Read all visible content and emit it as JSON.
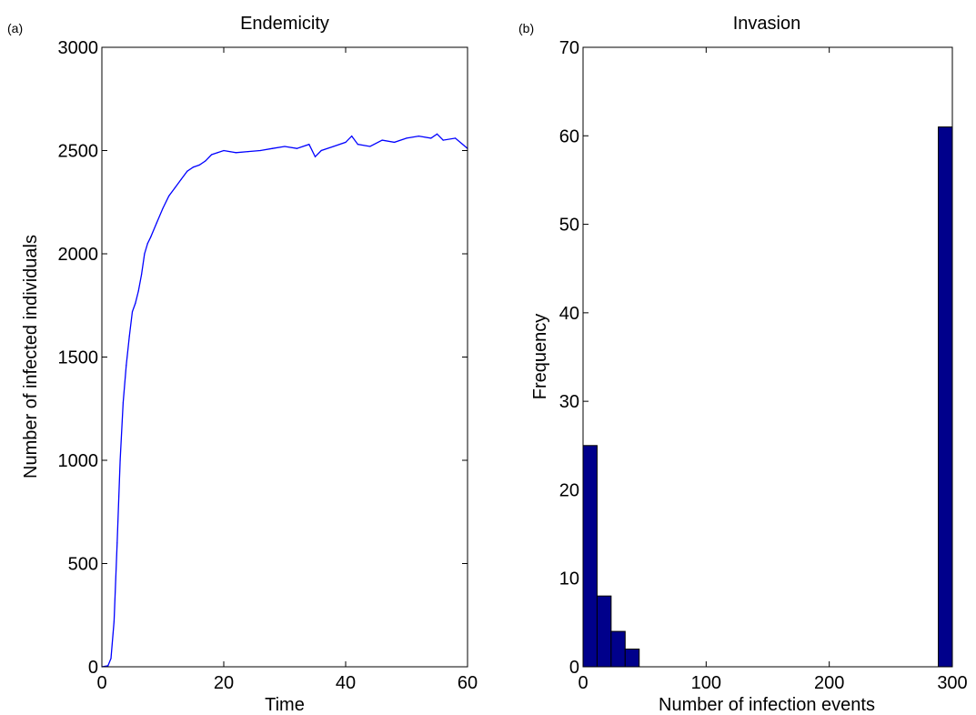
{
  "chart_data": [
    {
      "type": "line",
      "panel_label": "(a)",
      "title": "Endemicity",
      "xlabel": "Time",
      "ylabel": "Number of infected individuals",
      "xlim": [
        0,
        60
      ],
      "ylim": [
        0,
        3000
      ],
      "xticks": [
        "0",
        "20",
        "40",
        "60"
      ],
      "yticks": [
        "0",
        "500",
        "1000",
        "1500",
        "2000",
        "2500",
        "3000"
      ],
      "grid": false,
      "line_color": "#0000ff",
      "series": [
        {
          "x": [
            0,
            1,
            1.5,
            2,
            2.5,
            3,
            3.5,
            4,
            4.5,
            5,
            5.5,
            6,
            6.5,
            7,
            7.5,
            8,
            9,
            10,
            11,
            12,
            13,
            14,
            15,
            16,
            17,
            18,
            19,
            20,
            22,
            24,
            26,
            28,
            30,
            32,
            34,
            35,
            36,
            38,
            40,
            41,
            42,
            44,
            46,
            48,
            50,
            52,
            54,
            55,
            56,
            58,
            60
          ],
          "y": [
            0,
            5,
            40,
            220,
            600,
            1000,
            1280,
            1460,
            1600,
            1720,
            1760,
            1820,
            1900,
            2000,
            2050,
            2080,
            2150,
            2220,
            2280,
            2320,
            2360,
            2400,
            2420,
            2430,
            2450,
            2480,
            2490,
            2500,
            2490,
            2495,
            2500,
            2510,
            2520,
            2510,
            2530,
            2470,
            2500,
            2520,
            2540,
            2570,
            2530,
            2520,
            2550,
            2540,
            2560,
            2570,
            2560,
            2580,
            2550,
            2560,
            2510
          ]
        }
      ]
    },
    {
      "type": "bar",
      "panel_label": "(b)",
      "title": "Invasion",
      "xlabel": "Number of infection events",
      "ylabel": "Frequency",
      "xlim": [
        0,
        300
      ],
      "ylim": [
        0,
        70
      ],
      "xticks": [
        "0",
        "100",
        "200",
        "300"
      ],
      "yticks": [
        "0",
        "10",
        "20",
        "30",
        "40",
        "50",
        "60",
        "70"
      ],
      "grid": false,
      "bar_color": "#00008b",
      "bins": [
        {
          "x0": 0,
          "x1": 11.4,
          "value": 25
        },
        {
          "x0": 11.4,
          "x1": 22.8,
          "value": 8
        },
        {
          "x0": 22.8,
          "x1": 34.2,
          "value": 4
        },
        {
          "x0": 34.2,
          "x1": 45.6,
          "value": 2
        },
        {
          "x0": 288.6,
          "x1": 300,
          "value": 61
        }
      ]
    }
  ]
}
